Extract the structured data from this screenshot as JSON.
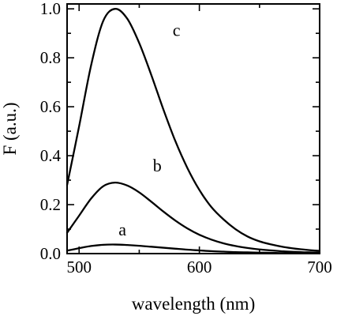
{
  "chart_data": {
    "type": "line",
    "title": "",
    "xlabel": "wavelength (nm)",
    "ylabel": "F (a.u.)",
    "xlim": [
      490,
      700
    ],
    "ylim": [
      0,
      1.02
    ],
    "x_ticks": [
      500,
      600,
      700
    ],
    "x_tick_labels": [
      "500",
      "600",
      "700"
    ],
    "y_ticks": [
      0.0,
      0.2,
      0.4,
      0.6,
      0.8,
      1.0
    ],
    "y_tick_labels": [
      "0.0",
      "0.2",
      "0.4",
      "0.6",
      "0.8",
      "1.0"
    ],
    "grid": false,
    "legend": "none",
    "series": [
      {
        "name": "a",
        "x": [
          490,
          500,
          510,
          520,
          530,
          540,
          550,
          560,
          570,
          580,
          590,
          600,
          610,
          620,
          630,
          640,
          650,
          660,
          670,
          680,
          690,
          700
        ],
        "values": [
          0.012,
          0.022,
          0.031,
          0.036,
          0.037,
          0.035,
          0.032,
          0.028,
          0.024,
          0.02,
          0.016,
          0.013,
          0.01,
          0.008,
          0.006,
          0.005,
          0.004,
          0.003,
          0.002,
          0.002,
          0.001,
          0.001
        ]
      },
      {
        "name": "b",
        "x": [
          490,
          500,
          510,
          520,
          530,
          540,
          550,
          560,
          570,
          580,
          590,
          600,
          610,
          620,
          630,
          640,
          650,
          660,
          670,
          680,
          690,
          700
        ],
        "values": [
          0.085,
          0.155,
          0.225,
          0.275,
          0.29,
          0.278,
          0.25,
          0.212,
          0.172,
          0.135,
          0.103,
          0.077,
          0.057,
          0.042,
          0.031,
          0.023,
          0.017,
          0.013,
          0.009,
          0.007,
          0.005,
          0.004
        ]
      },
      {
        "name": "c",
        "x": [
          490,
          500,
          510,
          520,
          530,
          540,
          550,
          560,
          570,
          580,
          590,
          600,
          610,
          620,
          630,
          640,
          650,
          660,
          670,
          680,
          690,
          700
        ],
        "values": [
          0.28,
          0.52,
          0.77,
          0.95,
          1.0,
          0.96,
          0.86,
          0.73,
          0.59,
          0.46,
          0.35,
          0.26,
          0.19,
          0.14,
          0.1,
          0.07,
          0.05,
          0.037,
          0.027,
          0.02,
          0.015,
          0.011
        ]
      }
    ],
    "series_labels": [
      {
        "text": "a",
        "x": 536,
        "y": 0.075
      },
      {
        "text": "b",
        "x": 565,
        "y": 0.335
      },
      {
        "text": "c",
        "x": 581,
        "y": 0.89
      }
    ]
  }
}
